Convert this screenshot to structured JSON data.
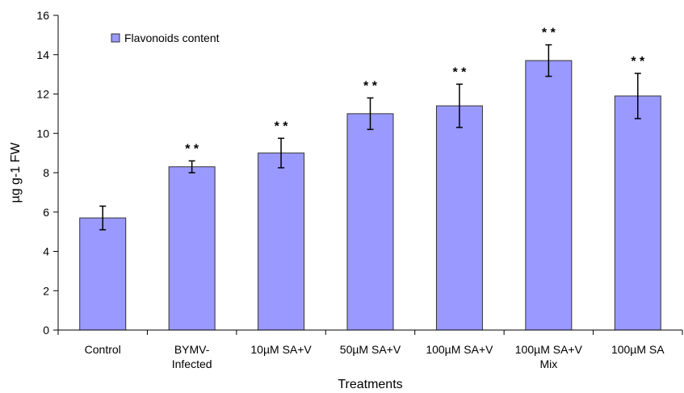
{
  "chart_data": {
    "type": "bar",
    "title": "",
    "xlabel": "Treatments",
    "ylabel": "µg g-1 FW",
    "ylim": [
      0,
      16
    ],
    "yticks": [
      0,
      2,
      4,
      6,
      8,
      10,
      12,
      14,
      16
    ],
    "grid": false,
    "legend_position": "top-left",
    "bar_color": "#9999ff",
    "categories": [
      [
        "Control"
      ],
      [
        "BYMV-",
        "Infected"
      ],
      [
        "10µM SA+V"
      ],
      [
        "50µM SA+V"
      ],
      [
        "100µM SA+V"
      ],
      [
        "100µM SA+V",
        "Mix"
      ],
      [
        "100µM SA"
      ]
    ],
    "series": [
      {
        "name": "Flavonoids content",
        "values": [
          5.7,
          8.3,
          9.0,
          11.0,
          11.4,
          13.7,
          11.9
        ],
        "error": [
          0.6,
          0.3,
          0.75,
          0.8,
          1.1,
          0.8,
          1.15
        ]
      }
    ],
    "annotations": [
      "",
      "**",
      "**",
      "**",
      "**",
      "**",
      "**"
    ]
  }
}
